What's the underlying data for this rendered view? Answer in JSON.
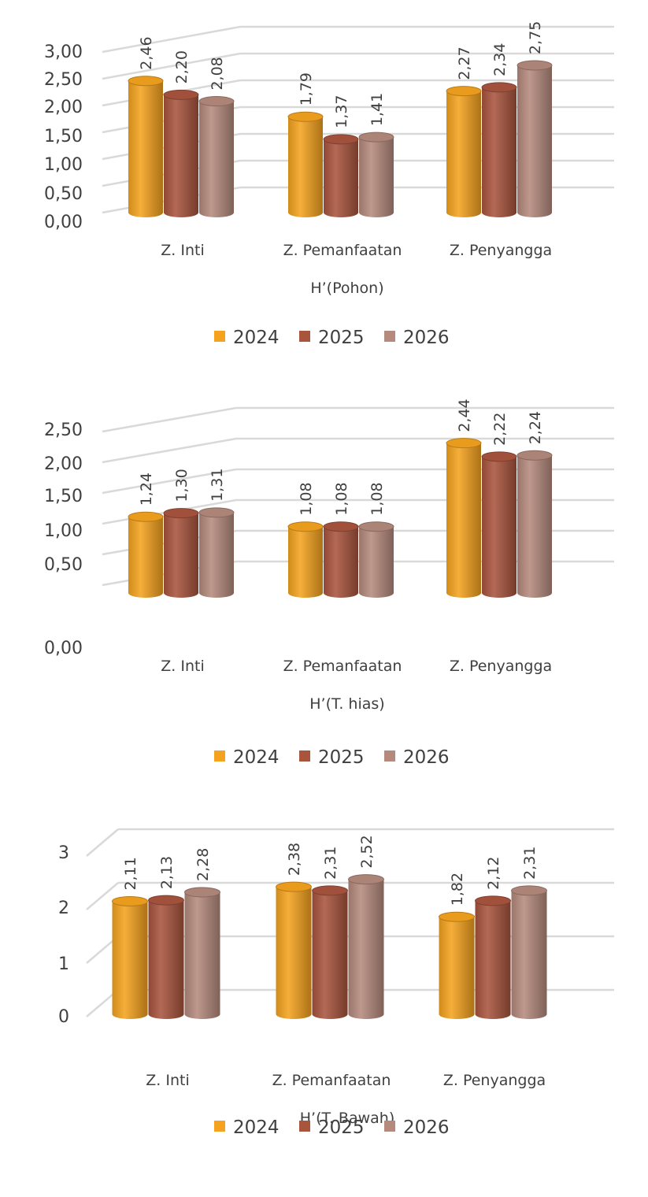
{
  "colors": {
    "2024": "#f5a31f",
    "2025": "#a9553e",
    "2026": "#b58a7d",
    "grid": "#d9d9d9",
    "text": "#404040"
  },
  "chart_data": [
    {
      "type": "bar",
      "title": "",
      "xlabel": "H’(Pohon)",
      "ylabel": "",
      "categories": [
        "Z. Inti",
        "Z. Pemanfaatan",
        "Z. Penyangga"
      ],
      "series": [
        {
          "name": "2024",
          "values": [
            2.46,
            1.79,
            2.27
          ]
        },
        {
          "name": "2025",
          "values": [
            2.2,
            1.37,
            2.34
          ]
        },
        {
          "name": "2026",
          "values": [
            2.08,
            1.41,
            2.75
          ]
        }
      ],
      "data_labels": [
        [
          "2,46",
          "1,79",
          "2,27"
        ],
        [
          "2,20",
          "1,37",
          "2,34"
        ],
        [
          "2,08",
          "1,41",
          "2,75"
        ]
      ],
      "yticks": [
        "0,00",
        "0,50",
        "1,00",
        "1,50",
        "2,00",
        "2,50",
        "3,00"
      ],
      "ytick_values": [
        0,
        0.5,
        1,
        1.5,
        2,
        2.5,
        3
      ],
      "ylim": [
        0,
        3
      ],
      "grid": true,
      "legend": "bottom"
    },
    {
      "type": "bar",
      "title": "",
      "xlabel": "H’(T. hias)",
      "ylabel": "",
      "categories": [
        "Z. Inti",
        "Z. Pemanfaatan",
        "Z. Penyangga"
      ],
      "series": [
        {
          "name": "2024",
          "values": [
            1.24,
            1.08,
            2.44
          ]
        },
        {
          "name": "2025",
          "values": [
            1.3,
            1.08,
            2.22
          ]
        },
        {
          "name": "2026",
          "values": [
            1.31,
            1.08,
            2.24
          ]
        }
      ],
      "data_labels": [
        [
          "1,24",
          "1,08",
          "2,44"
        ],
        [
          "1,30",
          "1,08",
          "2,22"
        ],
        [
          "1,31",
          "1,08",
          "2,24"
        ]
      ],
      "yticks": [
        "0,00",
        "0,50",
        "1,00",
        "1,50",
        "2,00",
        "2,50"
      ],
      "ytick_values": [
        0,
        0.5,
        1,
        1.5,
        2,
        2.5
      ],
      "ylim": [
        0,
        2.5
      ],
      "grid": true,
      "legend": "bottom"
    },
    {
      "type": "bar",
      "title": "",
      "xlabel": "H’(T. Bawah)",
      "ylabel": "",
      "categories": [
        "Z. Inti",
        "Z. Pemanfaatan",
        "Z. Penyangga"
      ],
      "series": [
        {
          "name": "2024",
          "values": [
            2.11,
            2.38,
            1.82
          ]
        },
        {
          "name": "2025",
          "values": [
            2.13,
            2.31,
            2.12
          ]
        },
        {
          "name": "2026",
          "values": [
            2.28,
            2.52,
            2.31
          ]
        }
      ],
      "data_labels": [
        [
          "2,11",
          "2,38",
          "1,82"
        ],
        [
          "2,13",
          "2,31",
          "2,12"
        ],
        [
          "2,28",
          "2,52",
          "2,31"
        ]
      ],
      "yticks": [
        "0",
        "1",
        "2",
        "3"
      ],
      "ytick_values": [
        0,
        1,
        2,
        3
      ],
      "ylim": [
        0,
        3
      ],
      "grid": true,
      "legend": "bottom"
    }
  ]
}
